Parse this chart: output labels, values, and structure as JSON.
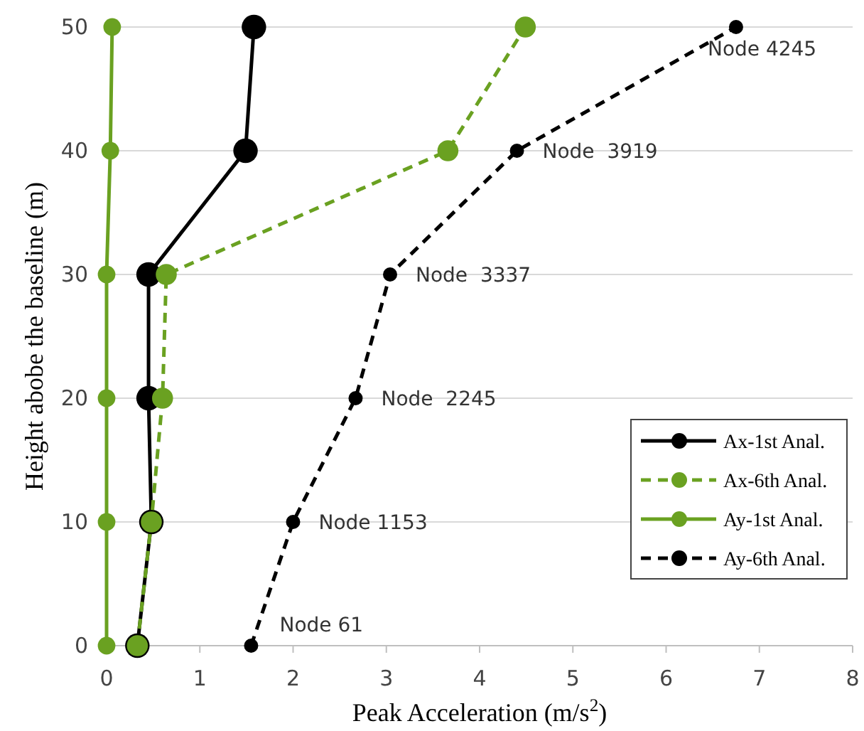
{
  "chart_data": {
    "type": "line",
    "xlabel": "Peak Acceleration (m/s$^{2}$)",
    "ylabel": "Height abobe the baseline (m)",
    "xlim": [
      0,
      8
    ],
    "xticks": [
      0,
      1,
      2,
      3,
      4,
      5,
      6,
      7,
      8
    ],
    "ylim": [
      0,
      50
    ],
    "yticks": [
      0,
      10,
      20,
      30,
      40,
      50
    ],
    "grid": "y",
    "legend": "bottom right",
    "marker": "circle",
    "series": [
      {
        "name": "Ax-1st Anal.",
        "color": "#000000",
        "line_style": "solid",
        "x": [
          0.33,
          0.48,
          0.45,
          0.45,
          1.49,
          1.58
        ],
        "values": [
          0,
          10,
          20,
          30,
          40,
          50
        ]
      },
      {
        "name": "Ax-6th Anal.",
        "color": "#6aa121",
        "line_style": "dashed",
        "x": [
          0.33,
          0.48,
          0.6,
          0.64,
          3.66,
          4.49
        ],
        "values": [
          0,
          10,
          20,
          30,
          40,
          50
        ]
      },
      {
        "name": "Ay-1st Anal.",
        "color": "#6aa121",
        "line_style": "solid",
        "x": [
          0,
          0,
          0,
          0,
          0.04,
          0.06
        ],
        "values": [
          0,
          10,
          20,
          30,
          40,
          50
        ]
      },
      {
        "name": "Ay-6th Anal.",
        "color": "#000000",
        "line_style": "dashed",
        "x": [
          1.55,
          2.0,
          2.67,
          3.04,
          4.4,
          6.75
        ],
        "values": [
          0,
          10,
          20,
          30,
          40,
          50
        ]
      }
    ],
    "annotations": [
      {
        "text": "Node 61",
        "x": 1.55,
        "y": 0
      },
      {
        "text": "Node 1153",
        "x": 2.0,
        "y": 10
      },
      {
        "text": "Node  2245",
        "x": 2.67,
        "y": 20
      },
      {
        "text": "Node  3337",
        "x": 3.04,
        "y": 30
      },
      {
        "text": "Node  3919",
        "x": 4.4,
        "y": 40
      },
      {
        "text": "Node 4245",
        "x": 6.75,
        "y": 50
      }
    ]
  }
}
